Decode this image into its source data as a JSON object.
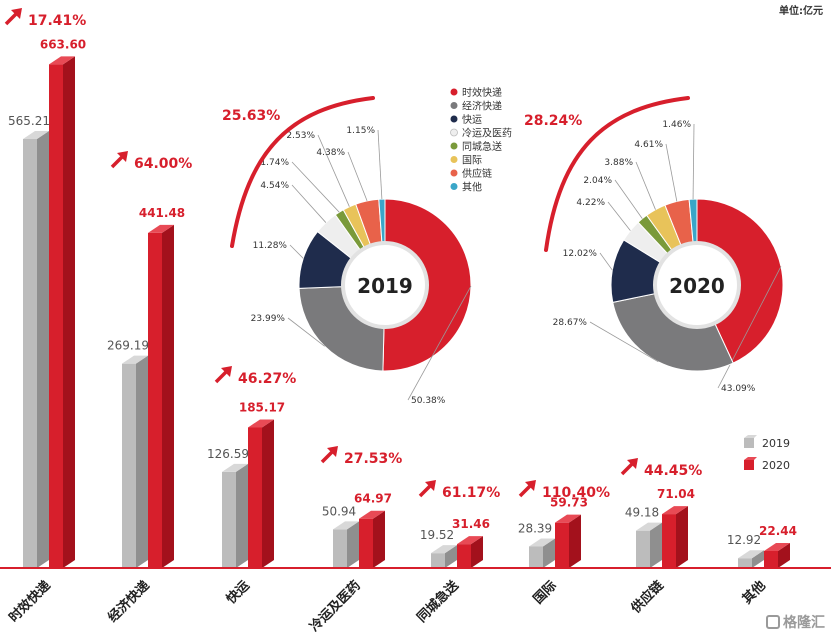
{
  "unit_label": "单位:亿元",
  "watermark": "格隆汇",
  "colors": {
    "red": "#d71f2c",
    "red_dark": "#a3111c",
    "red_top": "#e84a55",
    "gray": "#bcbcbc",
    "gray_dark": "#8f8f8f",
    "gray_top": "#d8d8d8",
    "axis": "#d71f2c",
    "label_gray": "#555555",
    "label_red": "#d71f2c"
  },
  "chart_data": [
    {
      "type": "bar",
      "categories": [
        "时效快递",
        "经济快递",
        "快运",
        "冷运及医药",
        "同城急送",
        "国际",
        "供应链",
        "其他"
      ],
      "series": [
        {
          "name": "2019",
          "values": [
            565.21,
            269.19,
            126.59,
            50.94,
            19.52,
            28.39,
            49.18,
            12.92
          ]
        },
        {
          "name": "2020",
          "values": [
            663.6,
            441.48,
            185.17,
            64.97,
            31.46,
            59.73,
            71.04,
            22.44
          ]
        }
      ],
      "value_labels_2019": [
        "565.21",
        "269.19",
        "126.59",
        "50.94",
        "19.52",
        "28.39",
        "49.18",
        "12.92"
      ],
      "value_labels_2020": [
        "663.60",
        "441.48",
        "185.17",
        "64.97",
        "31.46",
        "59.73",
        "71.04",
        "22.44"
      ],
      "growth_labels": [
        "17.41%",
        "64.00%",
        "46.27%",
        "27.53%",
        "61.17%",
        "110.40%",
        "44.45%",
        ""
      ],
      "legend": [
        "2019",
        "2020"
      ],
      "legend_position": "right",
      "ylim": [
        0,
        700
      ]
    },
    {
      "type": "pie",
      "center_label": "2019",
      "growth_label": "25.63%",
      "labels": [
        "时效快递",
        "经济快递",
        "快运",
        "冷运及医药",
        "同城急送",
        "国际",
        "供应链",
        "其他"
      ],
      "values": [
        50.38,
        23.99,
        11.28,
        4.54,
        1.74,
        2.53,
        4.38,
        1.15
      ],
      "value_labels": [
        "50.38%",
        "23.99%",
        "11.28%",
        "4.54%",
        "1.74%",
        "2.53%",
        "4.38%",
        "1.15%"
      ]
    },
    {
      "type": "pie",
      "center_label": "2020",
      "growth_label": "28.24%",
      "labels": [
        "时效快递",
        "经济快递",
        "快运",
        "冷运及医药",
        "同城急送",
        "国际",
        "供应链",
        "其他"
      ],
      "values": [
        43.09,
        28.67,
        12.02,
        4.22,
        2.04,
        3.88,
        4.61,
        1.46
      ],
      "value_labels": [
        "43.09%",
        "28.67%",
        "12.02%",
        "4.22%",
        "2.04%",
        "3.88%",
        "4.61%",
        "1.46%"
      ]
    }
  ],
  "pie_legend": {
    "items": [
      "时效快递",
      "经济快递",
      "快运",
      "冷运及医药",
      "同城急送",
      "国际",
      "供应链",
      "其他"
    ],
    "colors": [
      "#d71f2c",
      "#7a7a7c",
      "#1f2c4c",
      "#eeeeee",
      "#7a9a3a",
      "#e8c35a",
      "#e8624a",
      "#3aa6c8"
    ]
  }
}
